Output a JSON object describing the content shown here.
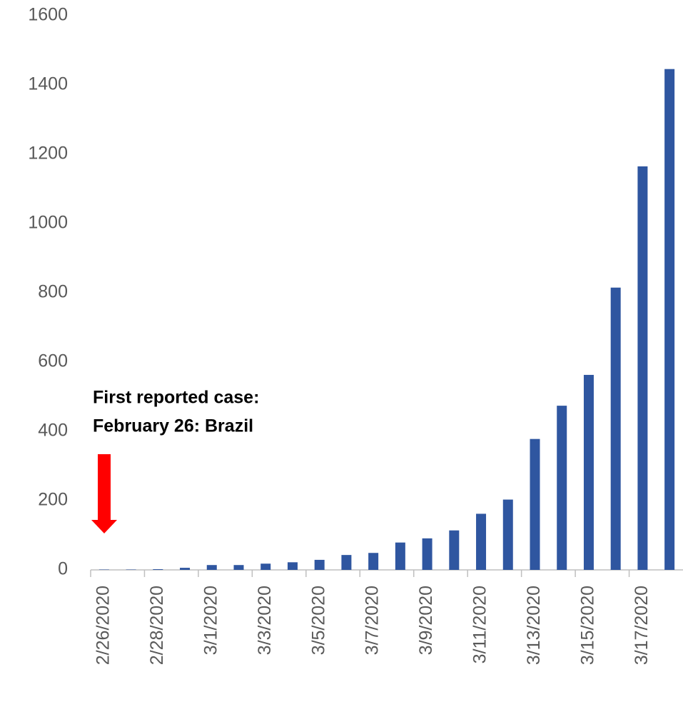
{
  "chart_data": {
    "type": "bar",
    "categories": [
      "2/26/2020",
      null,
      "2/28/2020",
      null,
      "3/1/2020",
      null,
      "3/3/2020",
      null,
      "3/5/2020",
      null,
      "3/7/2020",
      null,
      "3/9/2020",
      null,
      "3/11/2020",
      null,
      "3/13/2020",
      null,
      "3/15/2020",
      null,
      "3/17/2020",
      null
    ],
    "values": [
      1,
      1,
      2,
      6,
      14,
      14,
      18,
      22,
      29,
      43,
      49,
      79,
      91,
      114,
      162,
      203,
      378,
      474,
      563,
      815,
      1165,
      1446
    ],
    "color": "#2f56a0",
    "ylim": [
      0,
      1600
    ],
    "yticks": [
      0,
      200,
      400,
      600,
      800,
      1000,
      1200,
      1400,
      1600
    ],
    "grid": false,
    "annotations": [
      "First reported case:",
      "February 26: Brazil"
    ]
  }
}
